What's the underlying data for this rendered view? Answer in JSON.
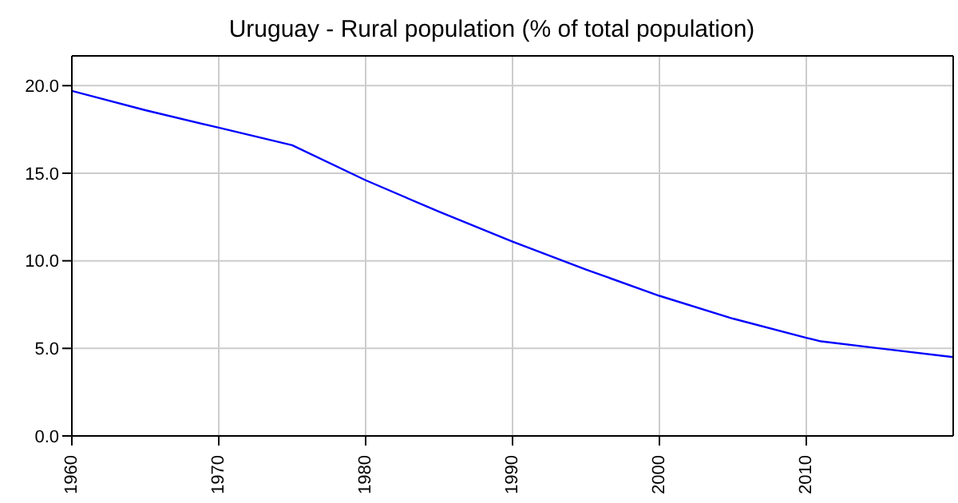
{
  "chart_data": {
    "type": "line",
    "title": "Uruguay - Rural population (% of total population)",
    "x": [
      1960,
      1965,
      1970,
      1975,
      1980,
      1985,
      1990,
      1995,
      2000,
      2005,
      2010,
      2011,
      2015,
      2020
    ],
    "series": [
      {
        "color": "#0000ff",
        "values": [
          19.7,
          18.6,
          17.6,
          16.6,
          14.6,
          12.8,
          11.1,
          9.5,
          8.0,
          6.7,
          5.6,
          5.4,
          5.0,
          4.5
        ]
      }
    ],
    "xlim": [
      1960,
      2020
    ],
    "xticks": [
      1960,
      1970,
      1980,
      1990,
      2000,
      2010
    ],
    "ylim": [
      0,
      21.7
    ],
    "yticks": [
      {
        "value": 0,
        "label": "0.0"
      },
      {
        "value": 5,
        "label": "5.0"
      },
      {
        "value": 10,
        "label": "10.0"
      },
      {
        "value": 15,
        "label": "15.0"
      },
      {
        "value": 20,
        "label": "20.0"
      }
    ],
    "grid": true,
    "marker": "none",
    "line_style": "solid"
  }
}
